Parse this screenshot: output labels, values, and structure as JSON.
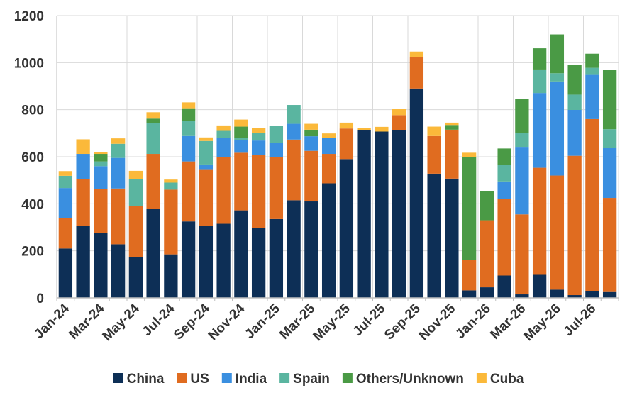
{
  "chart_data": {
    "type": "bar",
    "stacked": true,
    "title": "",
    "xlabel": "",
    "ylabel": "",
    "ylim": [
      0,
      1200
    ],
    "yticks": [
      0,
      200,
      400,
      600,
      800,
      1000,
      1200
    ],
    "grid": true,
    "legend_position": "bottom",
    "categories": [
      "Jan-24",
      "Feb-24",
      "Mar-24",
      "Apr-24",
      "May-24",
      "Jun-24",
      "Jul-24",
      "Aug-24",
      "Sep-24",
      "Oct-24",
      "Nov-24",
      "Dec-24",
      "Jan-25",
      "Feb-25",
      "Mar-25",
      "Apr-25",
      "May-25",
      "Jun-25",
      "Jul-25",
      "Aug-25",
      "Sep-25",
      "Oct-25",
      "Nov-25",
      "Dec-25",
      "Jan-26",
      "Feb-26",
      "Mar-26",
      "Apr-26",
      "May-26",
      "Jun-26",
      "Jul-26",
      "Aug-26"
    ],
    "tick_labels": [
      "Jan-24",
      "Mar-24",
      "May-24",
      "Jul-24",
      "Sep-24",
      "Nov-24",
      "Jan-25",
      "Mar-25",
      "May-25",
      "Jul-25",
      "Sep-25",
      "Nov-25",
      "Jan-26",
      "Mar-26",
      "May-26",
      "Jul-26"
    ],
    "series": [
      {
        "name": "China",
        "color": "#0d2f56",
        "values": [
          210,
          307,
          275,
          228,
          172,
          377,
          185,
          325,
          307,
          315,
          372,
          298,
          335,
          415,
          410,
          487,
          590,
          713,
          707,
          712,
          890,
          528,
          507,
          32,
          45,
          95,
          15,
          98,
          35,
          12,
          30,
          25
        ]
      },
      {
        "name": "US",
        "color": "#e06c20",
        "values": [
          130,
          198,
          188,
          237,
          218,
          235,
          275,
          255,
          240,
          282,
          245,
          308,
          262,
          258,
          215,
          125,
          130,
          0,
          0,
          65,
          135,
          160,
          208,
          128,
          285,
          325,
          340,
          455,
          485,
          592,
          730,
          400
        ]
      },
      {
        "name": "India",
        "color": "#3a8fe0",
        "values": [
          127,
          107,
          97,
          130,
          0,
          0,
          0,
          108,
          20,
          83,
          53,
          63,
          63,
          67,
          62,
          67,
          0,
          0,
          0,
          0,
          0,
          0,
          0,
          0,
          0,
          75,
          287,
          318,
          400,
          195,
          188,
          212
        ]
      },
      {
        "name": "Spain",
        "color": "#5ab5a0",
        "values": [
          52,
          0,
          20,
          60,
          115,
          130,
          30,
          63,
          100,
          30,
          10,
          32,
          70,
          80,
          0,
          0,
          0,
          0,
          0,
          0,
          0,
          0,
          0,
          0,
          0,
          70,
          60,
          100,
          35,
          65,
          30,
          80
        ]
      },
      {
        "name": "Others/Unknown",
        "color": "#4a9a45",
        "values": [
          0,
          0,
          32,
          0,
          0,
          20,
          0,
          55,
          0,
          0,
          48,
          0,
          0,
          0,
          28,
          0,
          0,
          0,
          0,
          0,
          0,
          0,
          20,
          437,
          125,
          70,
          145,
          90,
          165,
          125,
          60,
          253
        ]
      },
      {
        "name": "Cuba",
        "color": "#fbb93a",
        "values": [
          20,
          62,
          8,
          23,
          35,
          27,
          13,
          25,
          15,
          23,
          30,
          20,
          0,
          0,
          25,
          20,
          25,
          10,
          20,
          28,
          22,
          40,
          10,
          20,
          0,
          0,
          0,
          0,
          0,
          0,
          0,
          0
        ]
      }
    ]
  }
}
